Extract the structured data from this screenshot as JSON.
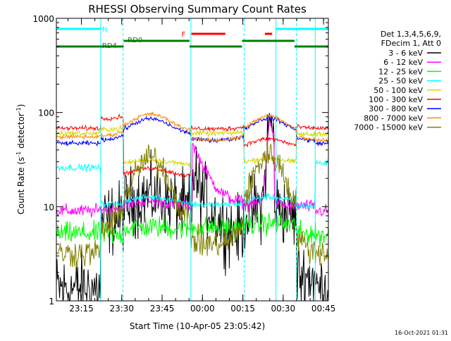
{
  "chart_data": {
    "type": "line",
    "title": "RHESSI Observing Summary Count Rates",
    "xlabel": "Start Time (10-Apr-05 23:05:42)",
    "ylabel_main": "Count Rate (s",
    "ylabel_sup1": "-1",
    "ylabel_mid": " detector",
    "ylabel_sup2": "-1",
    "ylabel_end": ")",
    "footer": "16-Oct-2021 01:31",
    "yscale": "log",
    "ylim": [
      1,
      1000
    ],
    "xlim_minutes": [
      0,
      101.1
    ],
    "xticks": [
      {
        "m": 9.3,
        "label": "23:15"
      },
      {
        "m": 24.3,
        "label": "23:30"
      },
      {
        "m": 39.3,
        "label": "23:45"
      },
      {
        "m": 54.3,
        "label": "00:00"
      },
      {
        "m": 69.3,
        "label": "00:15"
      },
      {
        "m": 84.3,
        "label": "00:30"
      },
      {
        "m": 99.3,
        "label": "00:45"
      }
    ],
    "yticks": [
      {
        "v": 1,
        "label": "1"
      },
      {
        "v": 10,
        "label": "10"
      },
      {
        "v": 100,
        "label": "100"
      },
      {
        "v": 1000,
        "label": "1000"
      }
    ],
    "legend": {
      "header1": "Det 1,3,4,5,6,9,",
      "header2": "FDecim 1, Att 0",
      "placement": "right"
    },
    "series": [
      {
        "name": "3 - 6 keV",
        "color": "#000000"
      },
      {
        "name": "6 - 12 keV",
        "color": "#ff00ff"
      },
      {
        "name": "12 - 25 keV",
        "color": "#00ff00"
      },
      {
        "name": "25 - 50 keV",
        "color": "#00ffff"
      },
      {
        "name": "50 - 100 keV",
        "color": "#d6d600"
      },
      {
        "name": "100 - 300 keV",
        "color": "#ff0000"
      },
      {
        "name": "300 - 800 keV",
        "color": "#0000ff"
      },
      {
        "name": "800 - 7000 keV",
        "color": "#ff8800"
      },
      {
        "name": "7000 - 15000 keV",
        "color": "#808000"
      }
    ],
    "annotations": {
      "night_label": "N",
      "flare_label": "F",
      "rd0_label": "RD0",
      "rd4_label": "RD4",
      "night_color": "#00ffff",
      "flare_color": "#ff0000",
      "saa_color": "#008000",
      "night_intervals": [
        [
          0,
          16.3
        ],
        [
          81.6,
          101.1
        ]
      ],
      "flare_intervals": [
        [
          50.2,
          62.8
        ],
        [
          77.5,
          80.2
        ]
      ],
      "rd0_intervals": [
        [
          25.0,
          49.5
        ],
        [
          69.0,
          88.5
        ]
      ],
      "rd4_intervals": [
        [
          0,
          25.0
        ],
        [
          49.5,
          69.0
        ],
        [
          88.5,
          101.1
        ]
      ],
      "data_gap_lines": [
        16.5,
        24.8,
        50.0,
        69.8,
        81.6,
        89.2,
        96.2
      ]
    }
  }
}
